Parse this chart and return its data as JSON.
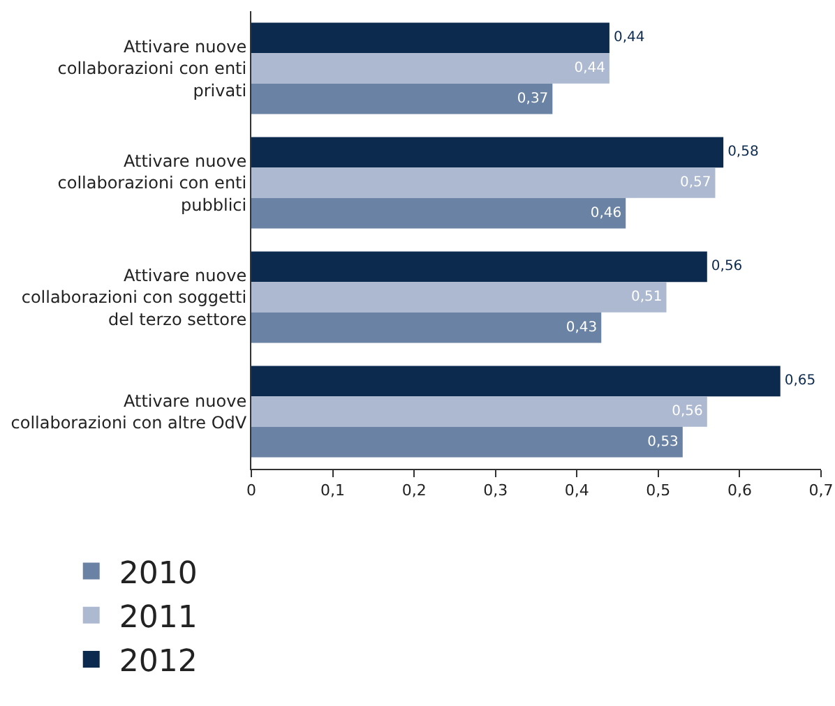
{
  "chart_data": {
    "type": "bar",
    "orientation": "horizontal",
    "categories": [
      "Attivare nuove collaborazioni con enti privati",
      "Attivare nuove collaborazioni con enti pubblici",
      "Attivare nuove collaborazioni con soggetti del terzo settore",
      "Attivare nuove collaborazioni con altre OdV"
    ],
    "series": [
      {
        "name": "2012",
        "color": "#0c2a4e",
        "values": [
          0.44,
          0.58,
          0.56,
          0.65
        ],
        "value_labels": [
          "0,44",
          "0,58",
          "0,56",
          "0,65"
        ]
      },
      {
        "name": "2011",
        "color": "#adb9d0",
        "values": [
          0.44,
          0.57,
          0.51,
          0.56
        ],
        "value_labels": [
          "0,44",
          "0,57",
          "0,51",
          "0,56"
        ]
      },
      {
        "name": "2010",
        "color": "#6a82a3",
        "values": [
          0.37,
          0.46,
          0.43,
          0.53
        ],
        "value_labels": [
          "0,37",
          "0,46",
          "0,43",
          "0,53"
        ]
      }
    ],
    "xlim": [
      0,
      0.7
    ],
    "xticks": [
      0,
      {
        "value": 0.1,
        "label": "0,1"
      },
      {
        "value": 0.2,
        "label": "0,2"
      },
      {
        "value": 0.3,
        "label": "0,3"
      },
      {
        "value": 0.4,
        "label": "0,4"
      },
      {
        "value": 0.5,
        "label": "0,5"
      },
      {
        "value": 0.6,
        "label": "0,6"
      },
      {
        "value": 0.7,
        "label": "0,7"
      }
    ],
    "grid": false,
    "legend": "bottom left"
  }
}
